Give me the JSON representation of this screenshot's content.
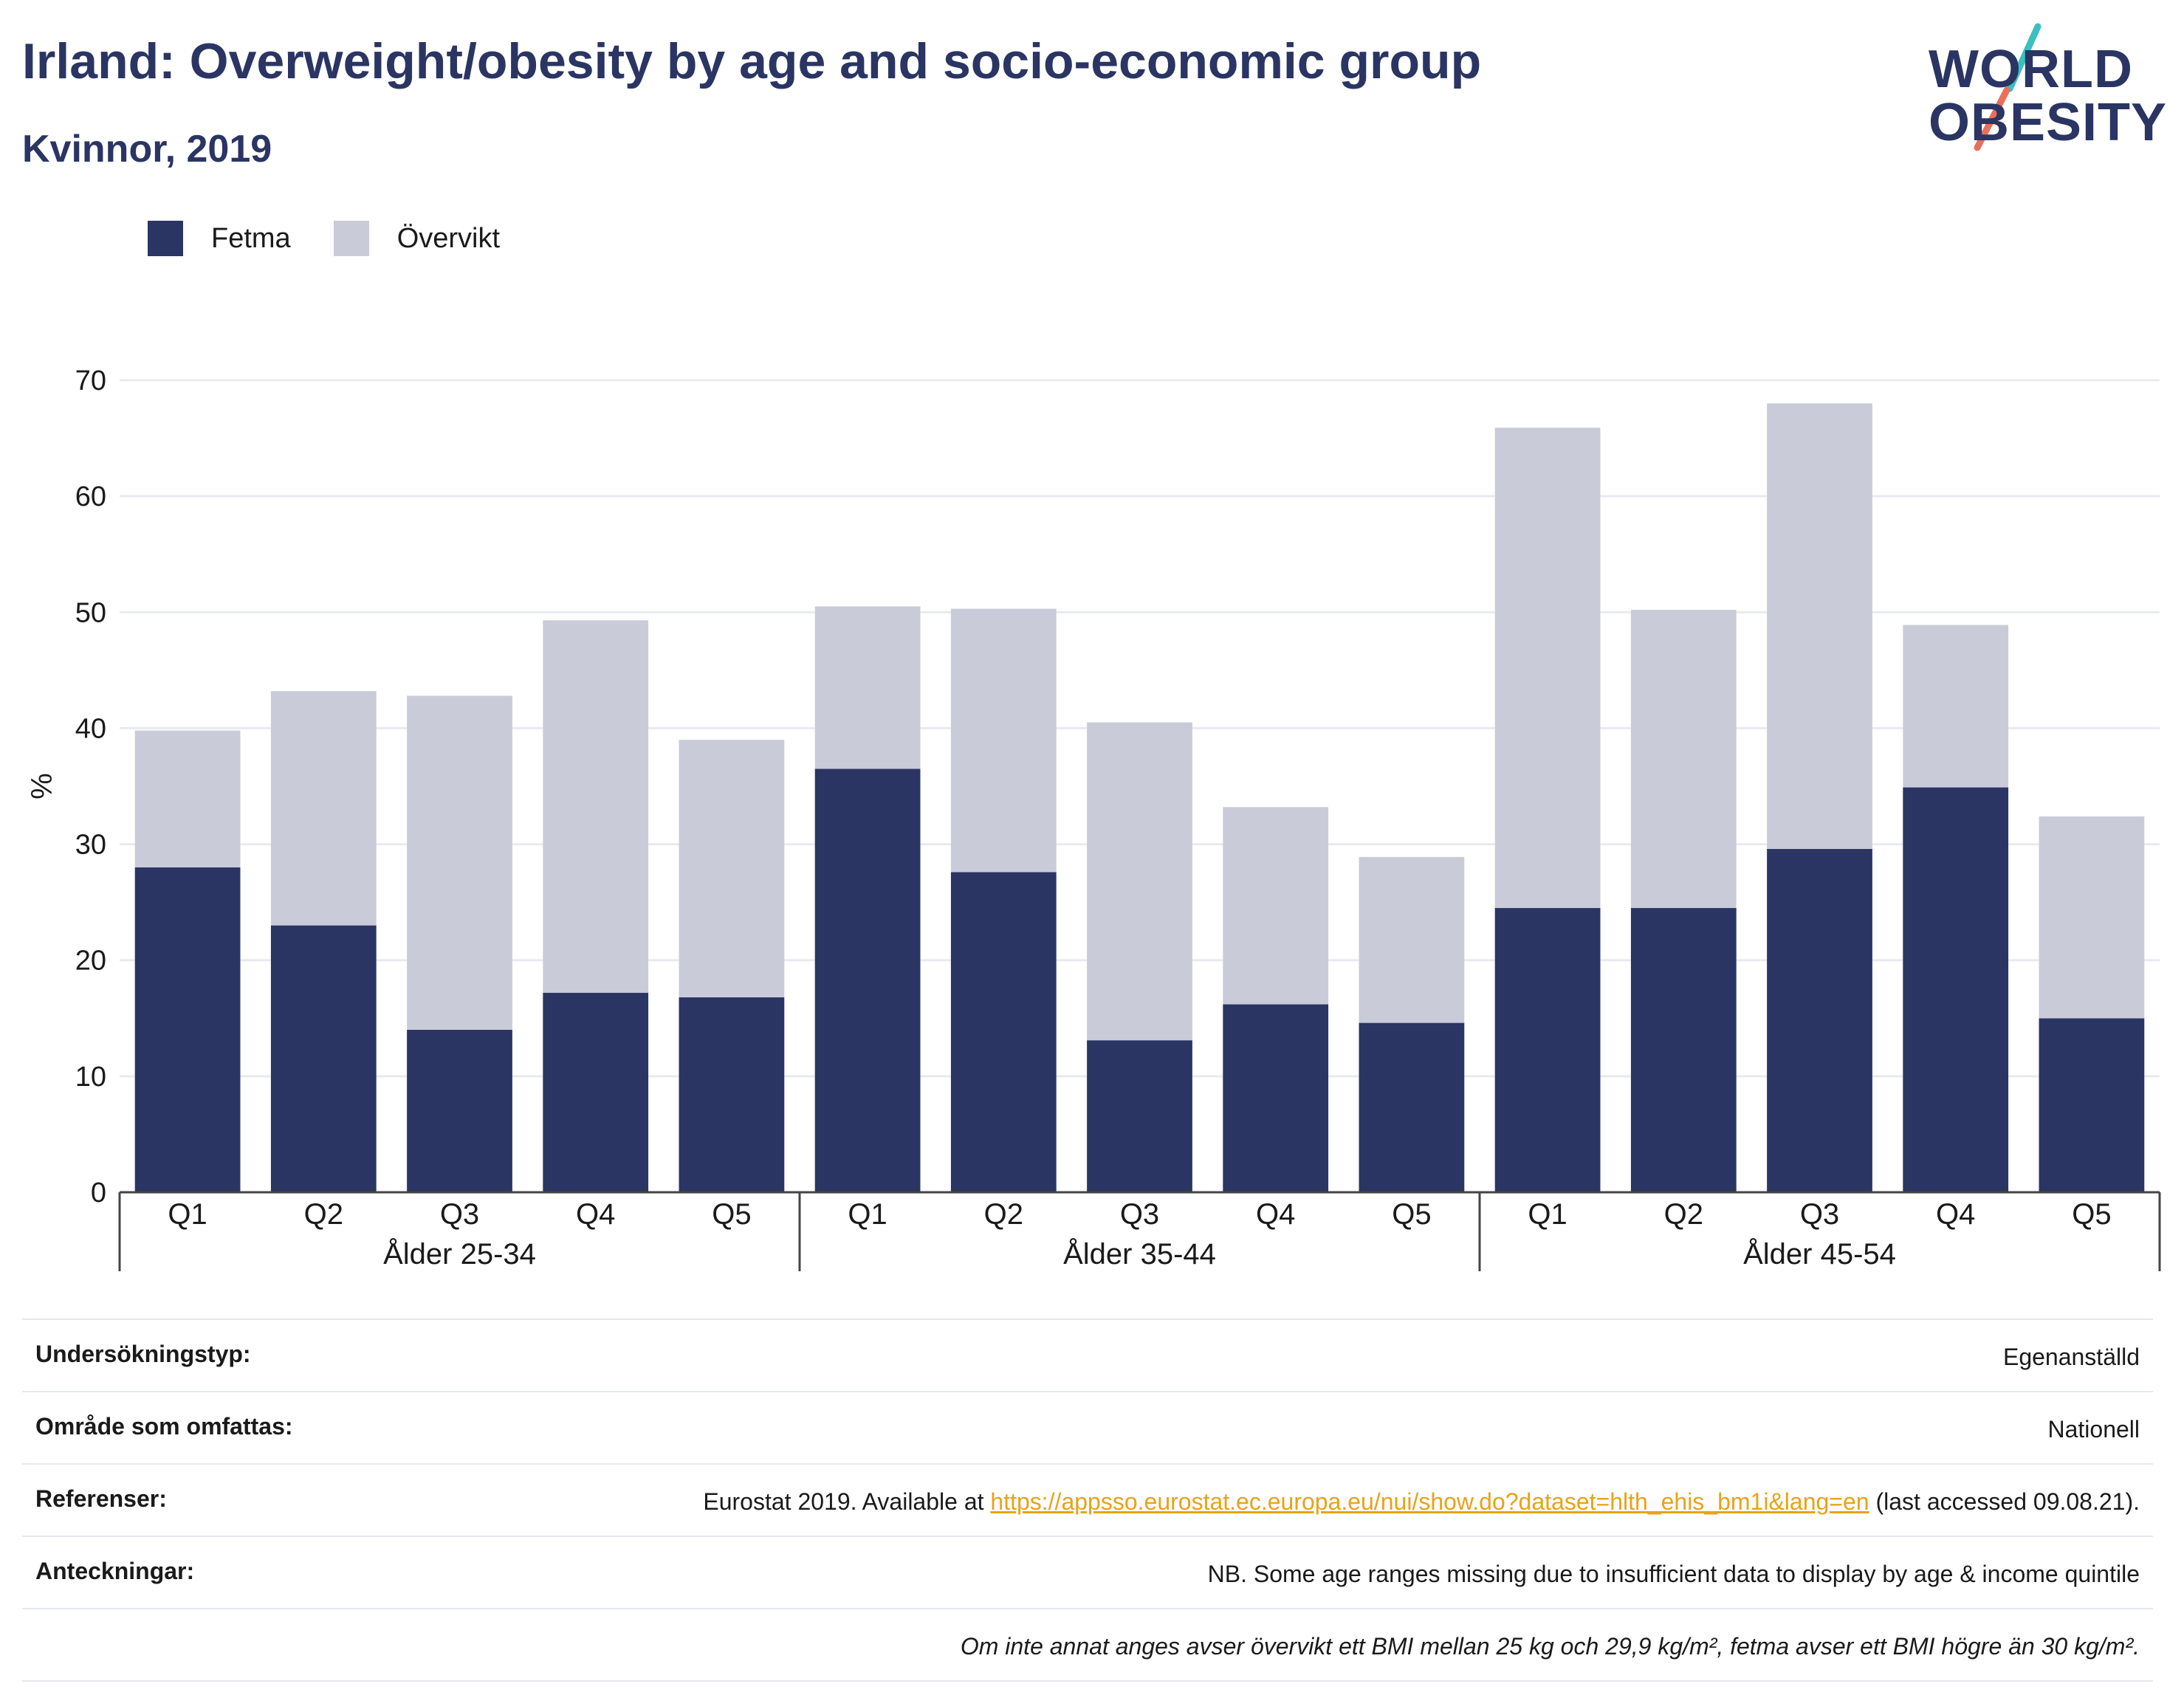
{
  "header": {
    "title": "Irland: Overweight/obesity by age and socio-economic group",
    "subtitle": "Kvinnor, 2019"
  },
  "logo": {
    "line1": "WORLD",
    "line2": "OBESITY",
    "slash_colors": [
      "#3bbfbf",
      "#e8705a"
    ]
  },
  "legend": {
    "items": [
      {
        "label": "Fetma",
        "color": "#2a3563"
      },
      {
        "label": "Övervikt",
        "color": "#cacbd8"
      }
    ]
  },
  "chart_data": {
    "type": "bar",
    "stacked": true,
    "ylabel": "%",
    "ylim": [
      0,
      70
    ],
    "yticks": [
      0,
      10,
      20,
      30,
      40,
      50,
      60,
      70
    ],
    "grid": true,
    "legend_position": "top-left",
    "groups": [
      {
        "label": "Ålder 25-34",
        "categories": [
          "Q1",
          "Q2",
          "Q3",
          "Q4",
          "Q5"
        ]
      },
      {
        "label": "Ålder 35-44",
        "categories": [
          "Q1",
          "Q2",
          "Q3",
          "Q4",
          "Q5"
        ]
      },
      {
        "label": "Ålder 45-54",
        "categories": [
          "Q1",
          "Q2",
          "Q3",
          "Q4",
          "Q5"
        ]
      }
    ],
    "series": [
      {
        "name": "Fetma",
        "color": "#2a3563",
        "values": [
          28.0,
          23.0,
          14.0,
          17.2,
          16.8,
          36.5,
          27.6,
          13.1,
          16.2,
          14.6,
          24.5,
          24.5,
          29.6,
          34.9,
          15.0
        ]
      },
      {
        "name": "Övervikt",
        "color": "#cacbd8",
        "values": [
          11.8,
          20.2,
          28.8,
          32.1,
          22.2,
          14.0,
          22.7,
          27.4,
          17.0,
          14.3,
          41.4,
          25.7,
          38.4,
          14.0,
          17.4
        ]
      }
    ]
  },
  "info": {
    "rows": [
      {
        "key": "Undersökningstyp:",
        "value": "Egenanställd"
      },
      {
        "key": "Område som omfattas:",
        "value": "Nationell"
      },
      {
        "key": "Referenser:",
        "value_prefix": "Eurostat 2019. Available at ",
        "link": "https://appsso.eurostat.ec.europa.eu/nui/show.do?dataset=hlth_ehis_bm1i&lang=en",
        "value_suffix": " (last accessed 09.08.21)."
      },
      {
        "key": "Anteckningar:",
        "value": "NB. Some age ranges missing due to insufficient data to display by age & income quintile"
      }
    ],
    "footnote": "Om inte annat anges avser övervikt ett BMI mellan 25 kg och 29,9 kg/m², fetma avser ett BMI högre än 30 kg/m²."
  }
}
